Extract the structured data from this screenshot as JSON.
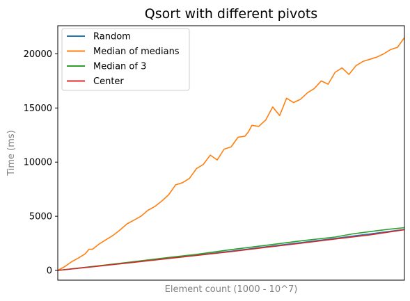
{
  "chart_data": {
    "type": "line",
    "title": "Qsort with different pivots",
    "xlabel": "Element count (1000 - 10^7)",
    "ylabel": "Time (ms)",
    "xlim": [
      0,
      100
    ],
    "ylim": [
      -900,
      22600
    ],
    "yticks": [
      0,
      5000,
      10000,
      15000,
      20000
    ],
    "grid": false,
    "legend_position": "upper-left",
    "series": [
      {
        "name": "Random",
        "color": "#1f77b4",
        "x": [
          0,
          10,
          20,
          30,
          40,
          50,
          60,
          70,
          80,
          90,
          100
        ],
        "y": [
          0,
          350,
          700,
          1050,
          1400,
          1780,
          2180,
          2560,
          2960,
          3370,
          3780
        ]
      },
      {
        "name": "Median of medians",
        "color": "#ff7f0e",
        "x": [
          0,
          2,
          4,
          6,
          8,
          9,
          10,
          12,
          14,
          16,
          18,
          20,
          22,
          24,
          26,
          28,
          30,
          32,
          34,
          36,
          38,
          40,
          42,
          44,
          46,
          48,
          50,
          52,
          54,
          55,
          56,
          58,
          60,
          62,
          64,
          66,
          68,
          70,
          72,
          74,
          76,
          78,
          80,
          82,
          84,
          86,
          88,
          90,
          92,
          94,
          96,
          98,
          100
        ],
        "y": [
          0,
          350,
          800,
          1150,
          1550,
          1950,
          1950,
          2450,
          2850,
          3250,
          3750,
          4300,
          4650,
          5000,
          5550,
          5900,
          6400,
          7000,
          7900,
          8100,
          8500,
          9400,
          9800,
          10650,
          10200,
          11200,
          11400,
          12300,
          12400,
          12800,
          13400,
          13300,
          13900,
          15100,
          14300,
          15900,
          15500,
          15800,
          16400,
          16800,
          17500,
          17200,
          18300,
          18700,
          18100,
          18900,
          19300,
          19500,
          19700,
          20000,
          20400,
          20600,
          21500
        ]
      },
      {
        "name": "Median of 3",
        "color": "#2ca02c",
        "x": [
          0,
          10,
          20,
          30,
          40,
          50,
          60,
          70,
          80,
          85,
          90,
          95,
          100
        ],
        "y": [
          0,
          360,
          730,
          1120,
          1480,
          1920,
          2320,
          2720,
          3080,
          3370,
          3580,
          3780,
          3950
        ]
      },
      {
        "name": "Center",
        "color": "#d62728",
        "x": [
          0,
          10,
          20,
          30,
          40,
          50,
          60,
          70,
          80,
          90,
          100
        ],
        "y": [
          0,
          330,
          680,
          1030,
          1380,
          1730,
          2130,
          2500,
          2900,
          3280,
          3760
        ]
      }
    ]
  }
}
